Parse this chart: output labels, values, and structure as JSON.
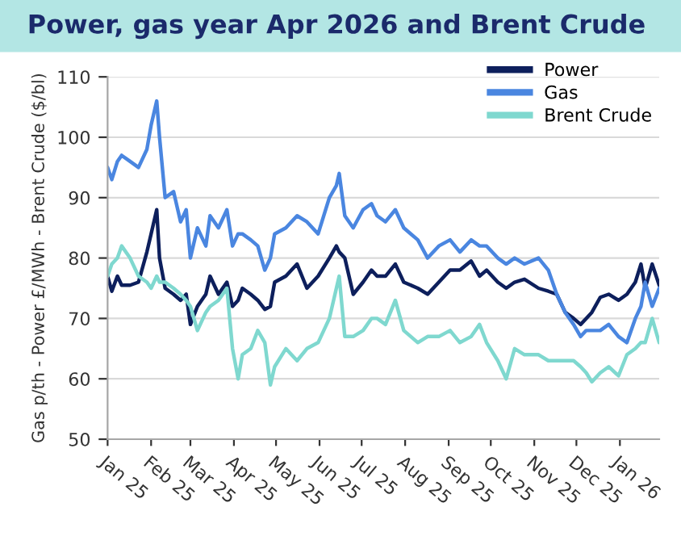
{
  "chart_data": {
    "type": "line",
    "title": "Power, gas year Apr 2026 and Brent Crude",
    "ylabel": "Gas p/th - Power £/MWh - Brent Crude ($/bl)",
    "x": [
      "2025-01-01",
      "2025-01-04",
      "2025-01-08",
      "2025-01-11",
      "2025-01-17",
      "2025-01-23",
      "2025-01-29",
      "2025-02-01",
      "2025-02-05",
      "2025-02-07",
      "2025-02-11",
      "2025-02-17",
      "2025-02-22",
      "2025-02-26",
      "2025-03-01",
      "2025-03-06",
      "2025-03-12",
      "2025-03-15",
      "2025-03-21",
      "2025-03-27",
      "2025-03-31",
      "2025-04-04",
      "2025-04-07",
      "2025-04-13",
      "2025-04-18",
      "2025-04-23",
      "2025-04-27",
      "2025-04-30",
      "2025-05-08",
      "2025-05-16",
      "2025-05-23",
      "2025-05-31",
      "2025-06-08",
      "2025-06-13",
      "2025-06-15",
      "2025-06-19",
      "2025-06-25",
      "2025-07-02",
      "2025-07-08",
      "2025-07-12",
      "2025-07-18",
      "2025-07-25",
      "2025-07-31",
      "2025-08-10",
      "2025-08-17",
      "2025-08-25",
      "2025-09-02",
      "2025-09-09",
      "2025-09-17",
      "2025-09-23",
      "2025-09-28",
      "2025-10-06",
      "2025-10-12",
      "2025-10-18",
      "2025-10-25",
      "2025-11-04",
      "2025-11-11",
      "2025-11-17",
      "2025-11-23",
      "2025-11-29",
      "2025-12-04",
      "2025-12-08",
      "2025-12-12",
      "2025-12-18",
      "2025-12-24",
      "2025-12-31",
      "2026-01-06",
      "2026-01-12",
      "2026-01-16",
      "2026-01-19",
      "2026-01-24",
      "2026-01-29"
    ],
    "series": [
      {
        "name": "Power",
        "color": "#0d1f5c",
        "values": [
          77,
          74.5,
          77,
          75.5,
          75.5,
          76,
          81,
          84,
          88,
          80,
          75,
          74,
          73,
          74,
          69,
          72,
          74,
          77,
          74,
          76,
          72,
          73,
          75,
          74,
          73,
          71.5,
          72,
          76,
          77,
          79,
          75,
          77,
          80,
          82,
          81,
          80,
          74,
          76,
          78,
          77,
          77,
          79,
          76,
          75,
          74,
          76,
          78,
          78,
          79.5,
          77,
          78,
          76,
          75,
          76,
          76.5,
          75,
          74.5,
          74,
          71,
          70,
          69,
          70,
          71,
          73.5,
          74,
          73,
          74,
          76,
          79,
          75,
          79,
          75.5
        ]
      },
      {
        "name": "Gas",
        "color": "#4a86e0",
        "values": [
          95,
          93,
          96,
          97,
          96,
          95,
          98,
          102,
          106,
          100,
          90,
          91,
          86,
          88,
          80,
          85,
          82,
          87,
          85,
          88,
          82,
          84,
          84,
          83,
          82,
          78,
          80,
          84,
          85,
          87,
          86,
          84,
          90,
          92,
          94,
          87,
          85,
          88,
          89,
          87,
          86,
          88,
          85,
          83,
          80,
          82,
          83,
          81,
          83,
          82,
          82,
          80,
          79,
          80,
          79,
          80,
          78,
          74,
          71,
          69,
          67,
          68,
          68,
          68,
          69,
          67,
          66,
          70,
          72,
          76,
          72,
          75
        ]
      },
      {
        "name": "Brent Crude",
        "color": "#7fd8cf",
        "values": [
          77,
          79,
          80,
          82,
          80,
          77,
          76,
          75,
          77,
          76,
          76,
          75,
          74,
          73,
          72,
          68,
          71,
          72,
          73,
          75,
          65,
          60,
          64,
          65,
          68,
          66,
          59,
          62,
          65,
          63,
          65,
          66,
          70,
          75,
          77,
          67,
          67,
          68,
          70,
          70,
          69,
          73,
          68,
          66,
          67,
          67,
          68,
          66,
          67,
          69,
          66,
          63,
          60,
          65,
          64,
          64,
          63,
          63,
          63,
          63,
          62,
          61,
          59.5,
          61,
          62,
          60.5,
          64,
          65,
          66,
          66,
          70,
          66
        ]
      }
    ],
    "xlim": [
      "2025-01-01",
      "2026-01-29"
    ],
    "xticks": [
      {
        "value": "2025-01-01",
        "label": "Jan 25"
      },
      {
        "value": "2025-02-01",
        "label": "Feb 25"
      },
      {
        "value": "2025-03-01",
        "label": "Mar 25"
      },
      {
        "value": "2025-04-01",
        "label": "Apr 25"
      },
      {
        "value": "2025-05-01",
        "label": "May 25"
      },
      {
        "value": "2025-06-01",
        "label": "Jun 25"
      },
      {
        "value": "2025-07-01",
        "label": "Jul 25"
      },
      {
        "value": "2025-08-01",
        "label": "Aug 25"
      },
      {
        "value": "2025-09-01",
        "label": "Sep 25"
      },
      {
        "value": "2025-10-01",
        "label": "Oct 25"
      },
      {
        "value": "2025-11-01",
        "label": "Nov 25"
      },
      {
        "value": "2025-12-01",
        "label": "Dec 25"
      },
      {
        "value": "2026-01-01",
        "label": "Jan 26"
      }
    ],
    "ylim": [
      50,
      110
    ],
    "yticks": [
      50,
      60,
      70,
      80,
      90,
      100,
      110
    ],
    "grid": "y",
    "legend": "top right",
    "marker": "none",
    "line_style": "solid"
  }
}
